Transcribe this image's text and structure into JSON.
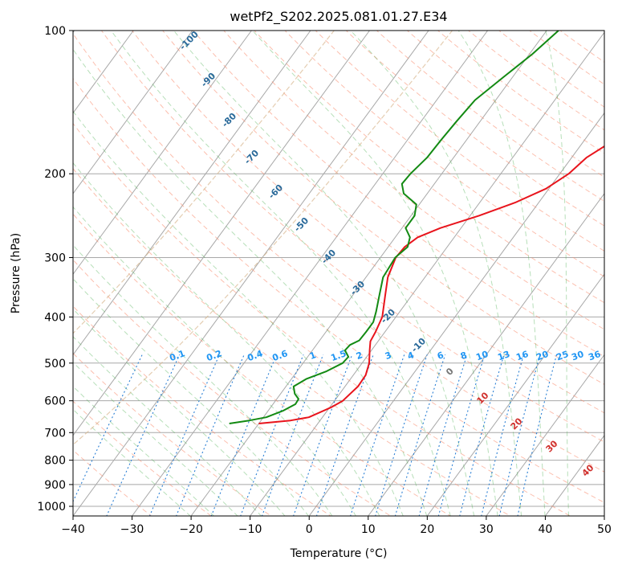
{
  "chart_data": {
    "type": "skew-t",
    "title": "wetPf2_S202.2025.081.01.27.E34",
    "xlabel": "Temperature (°C)",
    "ylabel": "Pressure (hPa)",
    "xlim": [
      -40,
      50
    ],
    "ylim_hPa": [
      1050,
      100
    ],
    "y_scale": "log",
    "x_ticks": [
      "−40",
      "−30",
      "−20",
      "−10",
      "0",
      "10",
      "20",
      "30",
      "40",
      "50"
    ],
    "y_ticks": [
      "100",
      "200",
      "300",
      "400",
      "500",
      "600",
      "700",
      "800",
      "900",
      "1000"
    ],
    "grid": true,
    "series": [
      {
        "color": "#e8141c",
        "points": [
          {
            "p": 670,
            "t": -20
          },
          {
            "p": 660,
            "t": -15
          },
          {
            "p": 650,
            "t": -12.3
          },
          {
            "p": 620,
            "t": -9.8
          },
          {
            "p": 600,
            "t": -8.6
          },
          {
            "p": 560,
            "t": -7.8
          },
          {
            "p": 530,
            "t": -7.9
          },
          {
            "p": 500,
            "t": -8.8
          },
          {
            "p": 470,
            "t": -10.3
          },
          {
            "p": 450,
            "t": -11.3
          },
          {
            "p": 430,
            "t": -11.6
          },
          {
            "p": 400,
            "t": -12.3
          },
          {
            "p": 360,
            "t": -14.5
          },
          {
            "p": 330,
            "t": -16.3
          },
          {
            "p": 300,
            "t": -17.4
          },
          {
            "p": 285,
            "t": -17.2
          },
          {
            "p": 272,
            "t": -16.2
          },
          {
            "p": 260,
            "t": -13.5
          },
          {
            "p": 245,
            "t": -8.5
          },
          {
            "p": 230,
            "t": -4
          },
          {
            "p": 215,
            "t": -0.5
          },
          {
            "p": 200,
            "t": 1.5
          },
          {
            "p": 185,
            "t": 2.5
          },
          {
            "p": 170,
            "t": 5
          },
          {
            "p": 155,
            "t": 7.5
          },
          {
            "p": 140,
            "t": 10
          },
          {
            "p": 125,
            "t": 11.5
          },
          {
            "p": 112,
            "t": 14.5
          },
          {
            "p": 100,
            "t": 16.5
          }
        ]
      },
      {
        "color": "#138a13",
        "points": [
          {
            "p": 670,
            "t": -25
          },
          {
            "p": 660,
            "t": -22
          },
          {
            "p": 650,
            "t": -19.5
          },
          {
            "p": 630,
            "t": -17.5
          },
          {
            "p": 610,
            "t": -16.2
          },
          {
            "p": 595,
            "t": -16.3
          },
          {
            "p": 580,
            "t": -17.6
          },
          {
            "p": 560,
            "t": -18.7
          },
          {
            "p": 540,
            "t": -17.5
          },
          {
            "p": 520,
            "t": -15
          },
          {
            "p": 500,
            "t": -13.3
          },
          {
            "p": 485,
            "t": -13.1
          },
          {
            "p": 470,
            "t": -14.5
          },
          {
            "p": 458,
            "t": -14.3
          },
          {
            "p": 448,
            "t": -13.3
          },
          {
            "p": 430,
            "t": -13.2
          },
          {
            "p": 410,
            "t": -13.2
          },
          {
            "p": 390,
            "t": -14
          },
          {
            "p": 360,
            "t": -15.5
          },
          {
            "p": 330,
            "t": -17.1
          },
          {
            "p": 300,
            "t": -17.5
          },
          {
            "p": 285,
            "t": -16.7
          },
          {
            "p": 272,
            "t": -17.5
          },
          {
            "p": 260,
            "t": -19.4
          },
          {
            "p": 245,
            "t": -19.4
          },
          {
            "p": 232,
            "t": -20.5
          },
          {
            "p": 220,
            "t": -24
          },
          {
            "p": 210,
            "t": -25.5
          },
          {
            "p": 200,
            "t": -25.3
          },
          {
            "p": 185,
            "t": -24.5
          },
          {
            "p": 170,
            "t": -24.3
          },
          {
            "p": 155,
            "t": -24
          },
          {
            "p": 140,
            "t": -23.5
          },
          {
            "p": 125,
            "t": -21.5
          },
          {
            "p": 112,
            "t": -19.5
          },
          {
            "p": 100,
            "t": -18
          }
        ]
      }
    ],
    "dry_adiabat_labels": [
      "-100",
      "-90",
      "-80",
      "-70",
      "-60",
      "-50",
      "-40",
      "-30",
      "-20",
      "-10"
    ],
    "moist_adiabat_labels": [
      "0",
      "10",
      "20",
      "30",
      "40"
    ],
    "mixing_ratio_labels": [
      "0.1",
      "0.2",
      "0.4",
      "0.6",
      "1",
      "1.5",
      "2",
      "3",
      "4",
      "6",
      "8",
      "10",
      "13",
      "16",
      "20",
      "25",
      "30",
      "36"
    ],
    "colors": {
      "temperature": "#e8141c",
      "dewpoint": "#138a13",
      "dry_adiabat": "#fa8a6c",
      "moist_adiabat": "#4caf50",
      "mixing_ratio": "#2a7fd4",
      "dry_adiabat_label": "#2a6a9a",
      "moist_adiabat_label": "#d0302c",
      "mixing_ratio_label": "#2196f3",
      "isotherm": "#a8a8a8"
    }
  }
}
